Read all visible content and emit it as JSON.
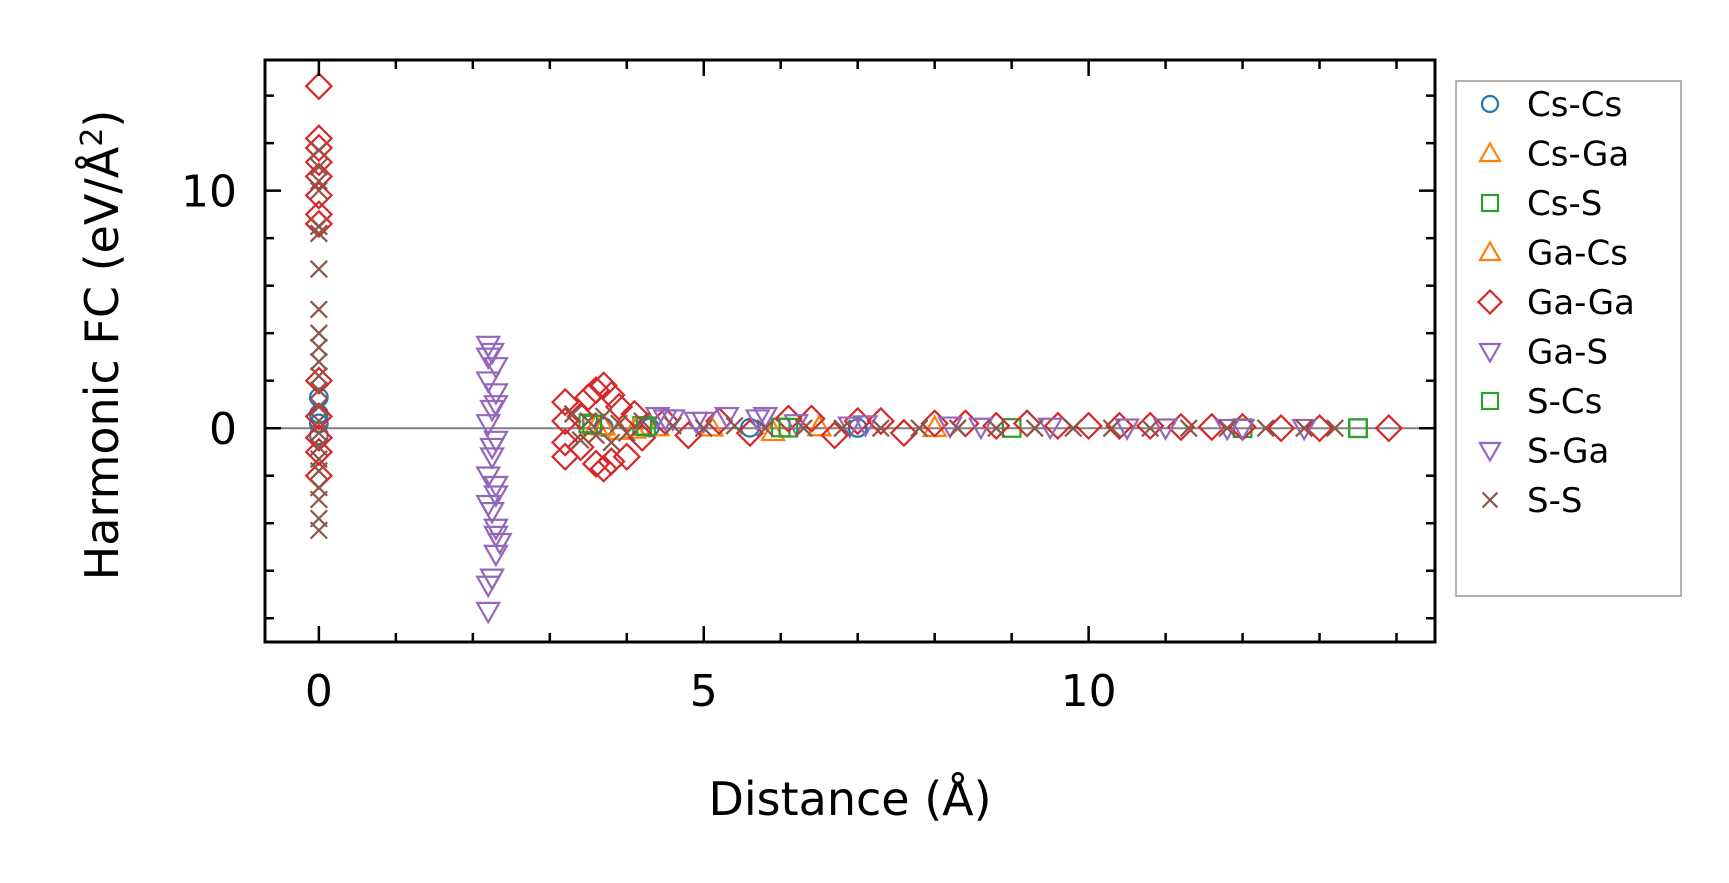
{
  "chart_data": {
    "type": "scatter",
    "xlabel": "Distance (Å)",
    "ylabel_main": "Harmonic FC (eV/Å",
    "ylabel_sup": "2",
    "ylabel_close": ")",
    "xlim": [
      -0.7,
      14.5
    ],
    "ylim": [
      -9.0,
      15.5
    ],
    "xticks": [
      0,
      5,
      10
    ],
    "yticks": [
      0,
      10
    ],
    "xtick_labels": [
      "0",
      "5",
      "10"
    ],
    "ytick_labels": [
      "0",
      "10"
    ],
    "xminor_step": 1,
    "yminor_step": 2,
    "zero_line": true,
    "grid": false,
    "legend_position": "outside-right",
    "series": [
      {
        "name": "Cs-Cs",
        "marker": "circle",
        "color": "#1f77b4",
        "points": [
          [
            0.0,
            1.3
          ],
          [
            0.0,
            0.6
          ],
          [
            0.0,
            0.2
          ],
          [
            0.0,
            -0.3
          ],
          [
            3.7,
            0.05
          ],
          [
            4.3,
            0.03
          ],
          [
            5.6,
            0.02
          ],
          [
            7.0,
            0.01
          ]
        ]
      },
      {
        "name": "Cs-Ga",
        "marker": "triangle-up",
        "color": "#ff7f0e",
        "points": [
          [
            3.6,
            0.1
          ],
          [
            3.9,
            -0.1
          ],
          [
            4.4,
            0.05
          ],
          [
            5.9,
            -0.15
          ],
          [
            6.5,
            0.05
          ],
          [
            8.0,
            0.02
          ]
        ]
      },
      {
        "name": "Cs-S",
        "marker": "square",
        "color": "#2ca02c",
        "points": [
          [
            3.5,
            0.2
          ],
          [
            4.2,
            0.1
          ],
          [
            6.0,
            0.03
          ],
          [
            9.0,
            0.01
          ],
          [
            12.0,
            0.0
          ],
          [
            13.5,
            0.0
          ]
        ]
      },
      {
        "name": "Ga-Cs",
        "marker": "triangle-up",
        "color": "#ff7f0e",
        "points": [
          [
            3.7,
            0.08
          ],
          [
            4.1,
            -0.05
          ],
          [
            5.1,
            0.04
          ]
        ]
      },
      {
        "name": "Ga-Ga",
        "marker": "diamond",
        "color": "#d62728",
        "points": [
          [
            0.0,
            14.4
          ],
          [
            0.0,
            12.2
          ],
          [
            0.0,
            11.8
          ],
          [
            0.0,
            11.2
          ],
          [
            0.0,
            10.6
          ],
          [
            0.0,
            9.8
          ],
          [
            0.0,
            9.0
          ],
          [
            0.0,
            8.6
          ],
          [
            0.0,
            2.0
          ],
          [
            0.0,
            0.5
          ],
          [
            0.0,
            -0.4
          ],
          [
            0.0,
            -1.0
          ],
          [
            0.0,
            -2.0
          ],
          [
            3.2,
            1.1
          ],
          [
            3.2,
            0.3
          ],
          [
            3.2,
            -0.6
          ],
          [
            3.2,
            -1.2
          ],
          [
            3.4,
            0.5
          ],
          [
            3.4,
            -0.8
          ],
          [
            3.5,
            1.3
          ],
          [
            3.6,
            1.6
          ],
          [
            3.6,
            -1.5
          ],
          [
            3.7,
            1.8
          ],
          [
            3.7,
            -1.7
          ],
          [
            3.8,
            1.4
          ],
          [
            3.8,
            -1.4
          ],
          [
            3.9,
            0.9
          ],
          [
            4.0,
            -1.2
          ],
          [
            4.1,
            0.6
          ],
          [
            4.2,
            -0.4
          ],
          [
            4.5,
            0.3
          ],
          [
            4.8,
            -0.3
          ],
          [
            5.2,
            0.3
          ],
          [
            5.6,
            -0.2
          ],
          [
            6.1,
            0.4
          ],
          [
            6.4,
            0.4
          ],
          [
            6.7,
            -0.3
          ],
          [
            7.0,
            0.3
          ],
          [
            7.3,
            0.3
          ],
          [
            7.6,
            -0.2
          ],
          [
            8.0,
            0.2
          ],
          [
            8.4,
            0.2
          ],
          [
            8.8,
            0.1
          ],
          [
            9.2,
            0.2
          ],
          [
            9.6,
            0.1
          ],
          [
            10.0,
            0.1
          ],
          [
            10.4,
            0.1
          ],
          [
            10.8,
            0.1
          ],
          [
            11.2,
            0.05
          ],
          [
            11.6,
            0.05
          ],
          [
            12.0,
            0.05
          ],
          [
            12.5,
            0.0
          ],
          [
            13.0,
            0.0
          ],
          [
            13.9,
            0.0
          ]
        ]
      },
      {
        "name": "Ga-S",
        "marker": "triangle-down",
        "color": "#9467bd",
        "points": [
          [
            2.2,
            3.5
          ],
          [
            2.25,
            3.2
          ],
          [
            2.3,
            2.6
          ],
          [
            2.2,
            2.0
          ],
          [
            2.3,
            1.5
          ],
          [
            2.25,
            0.8
          ],
          [
            2.2,
            0.2
          ],
          [
            2.3,
            -0.5
          ],
          [
            2.25,
            -1.2
          ],
          [
            2.2,
            -2.0
          ],
          [
            2.3,
            -2.8
          ],
          [
            2.25,
            -3.5
          ],
          [
            2.3,
            -4.2
          ],
          [
            2.35,
            -4.8
          ],
          [
            2.3,
            -5.3
          ],
          [
            2.25,
            -6.3
          ],
          [
            2.2,
            -7.7
          ],
          [
            4.4,
            0.5
          ],
          [
            4.6,
            0.4
          ],
          [
            4.9,
            0.3
          ],
          [
            5.3,
            0.5
          ],
          [
            5.8,
            0.5
          ],
          [
            6.2,
            0.2
          ],
          [
            7.1,
            0.15
          ],
          [
            8.2,
            0.1
          ],
          [
            9.5,
            0.05
          ],
          [
            11.0,
            0.02
          ],
          [
            12.0,
            0.0
          ],
          [
            12.8,
            0.0
          ]
        ]
      },
      {
        "name": "S-Cs",
        "marker": "square",
        "color": "#2ca02c",
        "points": [
          [
            3.55,
            0.15
          ],
          [
            4.25,
            0.08
          ],
          [
            6.1,
            0.02
          ],
          [
            13.5,
            0.0
          ]
        ]
      },
      {
        "name": "S-Ga",
        "marker": "triangle-down",
        "color": "#9467bd",
        "points": [
          [
            2.2,
            3.0
          ],
          [
            2.3,
            1.0
          ],
          [
            2.25,
            -0.8
          ],
          [
            2.3,
            -2.4
          ],
          [
            2.2,
            -3.2
          ],
          [
            2.3,
            -4.5
          ],
          [
            2.2,
            -6.6
          ],
          [
            4.5,
            0.4
          ],
          [
            5.0,
            0.3
          ],
          [
            5.7,
            0.4
          ],
          [
            6.9,
            0.1
          ],
          [
            8.6,
            0.05
          ],
          [
            10.5,
            0.02
          ],
          [
            11.8,
            0.0
          ]
        ]
      },
      {
        "name": "S-S",
        "marker": "x",
        "color": "#8c564b",
        "points": [
          [
            0.0,
            11.7
          ],
          [
            0.0,
            11.0
          ],
          [
            0.0,
            10.4
          ],
          [
            0.0,
            10.0
          ],
          [
            0.0,
            8.5
          ],
          [
            0.0,
            8.2
          ],
          [
            0.0,
            6.7
          ],
          [
            0.0,
            5.0
          ],
          [
            0.0,
            4.0
          ],
          [
            0.0,
            3.4
          ],
          [
            0.0,
            2.8
          ],
          [
            0.0,
            2.2
          ],
          [
            0.0,
            1.6
          ],
          [
            0.0,
            0.9
          ],
          [
            0.0,
            0.3
          ],
          [
            0.0,
            -0.2
          ],
          [
            0.0,
            -0.8
          ],
          [
            0.0,
            -1.3
          ],
          [
            0.0,
            -1.8
          ],
          [
            0.0,
            -2.5
          ],
          [
            0.0,
            -3.0
          ],
          [
            0.0,
            -3.8
          ],
          [
            0.0,
            -4.3
          ],
          [
            3.3,
            0.6
          ],
          [
            3.4,
            -0.5
          ],
          [
            3.5,
            0.3
          ],
          [
            3.6,
            -0.3
          ],
          [
            3.7,
            0.5
          ],
          [
            3.8,
            -0.6
          ],
          [
            3.9,
            0.2
          ],
          [
            4.0,
            -0.2
          ],
          [
            4.2,
            0.3
          ],
          [
            4.6,
            0.1
          ],
          [
            5.0,
            0.0
          ],
          [
            5.4,
            0.1
          ],
          [
            5.8,
            0.0
          ],
          [
            6.3,
            0.0
          ],
          [
            6.8,
            0.0
          ],
          [
            7.3,
            0.0
          ],
          [
            7.8,
            0.0
          ],
          [
            8.3,
            0.0
          ],
          [
            8.8,
            0.0
          ],
          [
            9.3,
            0.0
          ],
          [
            9.8,
            0.0
          ],
          [
            10.3,
            0.0
          ],
          [
            10.8,
            0.0
          ],
          [
            11.3,
            0.0
          ],
          [
            11.8,
            0.0
          ],
          [
            12.3,
            0.0
          ],
          [
            12.8,
            0.0
          ],
          [
            13.2,
            0.0
          ]
        ]
      }
    ]
  }
}
